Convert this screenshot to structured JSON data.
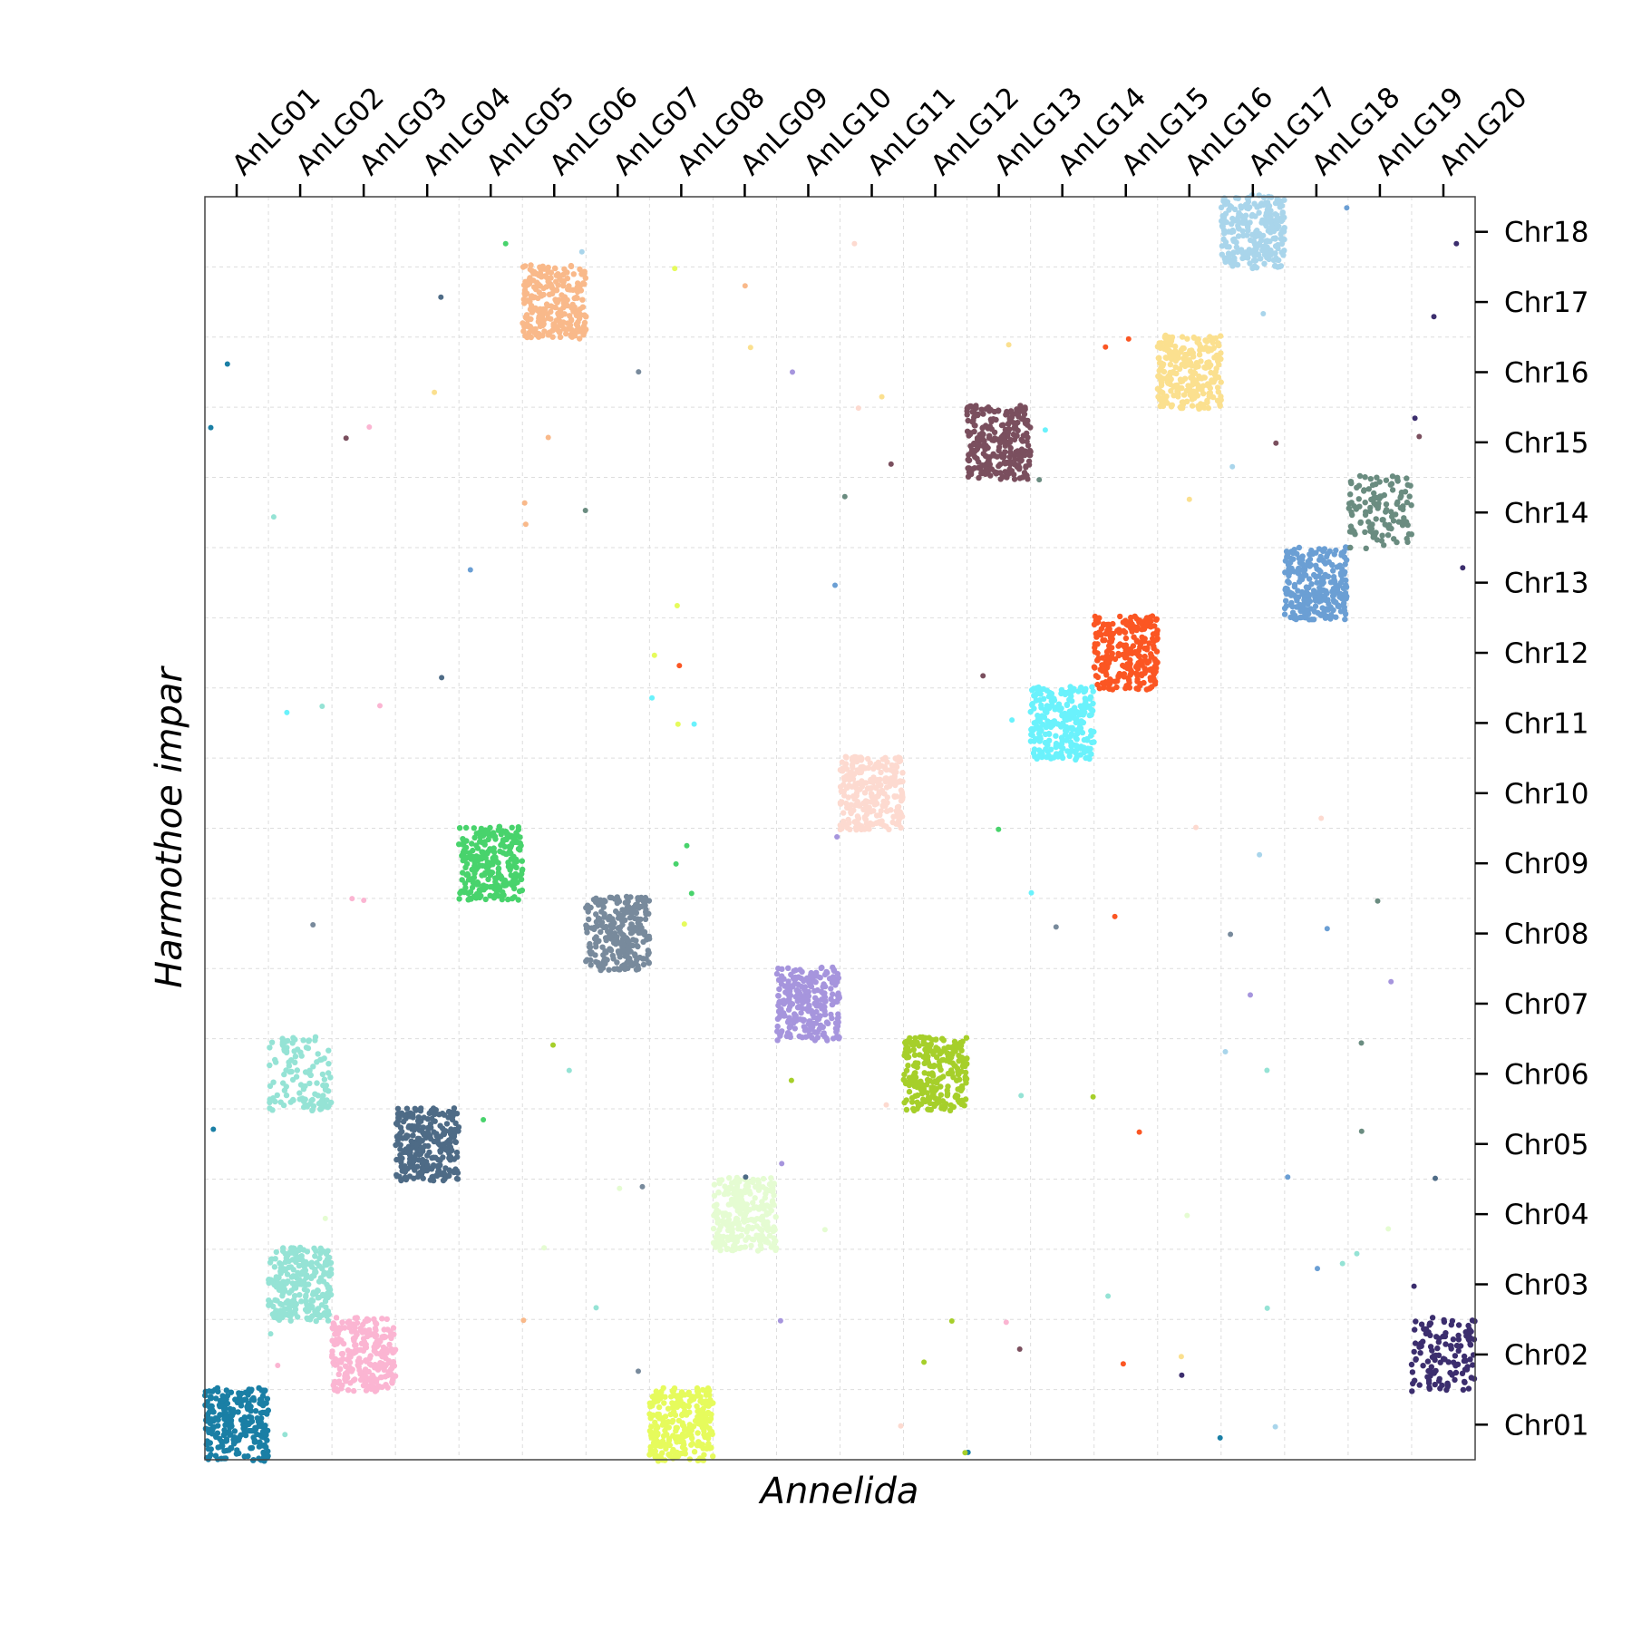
{
  "chart_data": {
    "type": "scatter",
    "title": "",
    "xlabel": "Annelida",
    "ylabel": "Harmothoe impar",
    "x_categories": [
      "AnLG01",
      "AnLG02",
      "AnLG03",
      "AnLG04",
      "AnLG05",
      "AnLG06",
      "AnLG07",
      "AnLG08",
      "AnLG09",
      "AnLG10",
      "AnLG11",
      "AnLG12",
      "AnLG13",
      "AnLG14",
      "AnLG15",
      "AnLG16",
      "AnLG17",
      "AnLG18",
      "AnLG19",
      "AnLG20"
    ],
    "y_categories": [
      "Chr01",
      "Chr02",
      "Chr03",
      "Chr04",
      "Chr05",
      "Chr06",
      "Chr07",
      "Chr08",
      "Chr09",
      "Chr10",
      "Chr11",
      "Chr12",
      "Chr13",
      "Chr14",
      "Chr15",
      "Chr16",
      "Chr17",
      "Chr18"
    ],
    "x_axis_position": "top",
    "y_axis_position": "right",
    "grid": true,
    "clusters": [
      {
        "x": "AnLG01",
        "y": "Chr01",
        "color": "#1a7fa5",
        "density": "high"
      },
      {
        "x": "AnLG02",
        "y": "Chr03",
        "color": "#95e3d5",
        "density": "high"
      },
      {
        "x": "AnLG02",
        "y": "Chr06",
        "color": "#95e3d5",
        "density": "medium"
      },
      {
        "x": "AnLG03",
        "y": "Chr02",
        "color": "#fbb5d2",
        "density": "high"
      },
      {
        "x": "AnLG04",
        "y": "Chr05",
        "color": "#4e6b86",
        "density": "high"
      },
      {
        "x": "AnLG05",
        "y": "Chr09",
        "color": "#48d36c",
        "density": "high"
      },
      {
        "x": "AnLG06",
        "y": "Chr17",
        "color": "#f9b98a",
        "density": "high"
      },
      {
        "x": "AnLG07",
        "y": "Chr08",
        "color": "#788a9c",
        "density": "high"
      },
      {
        "x": "AnLG08",
        "y": "Chr01",
        "color": "#e6fb5c",
        "density": "high"
      },
      {
        "x": "AnLG09",
        "y": "Chr04",
        "color": "#e5fcd2",
        "density": "high"
      },
      {
        "x": "AnLG10",
        "y": "Chr07",
        "color": "#a695dd",
        "density": "high"
      },
      {
        "x": "AnLG11",
        "y": "Chr10",
        "color": "#fddad0",
        "density": "high"
      },
      {
        "x": "AnLG12",
        "y": "Chr06",
        "color": "#a6cf2a",
        "density": "high"
      },
      {
        "x": "AnLG13",
        "y": "Chr15",
        "color": "#7a4f5e",
        "density": "high"
      },
      {
        "x": "AnLG14",
        "y": "Chr11",
        "color": "#6af2fc",
        "density": "high"
      },
      {
        "x": "AnLG15",
        "y": "Chr12",
        "color": "#fb5623",
        "density": "high"
      },
      {
        "x": "AnLG16",
        "y": "Chr16",
        "color": "#fbe08f",
        "density": "high"
      },
      {
        "x": "AnLG17",
        "y": "Chr18",
        "color": "#a9d5eb",
        "density": "high"
      },
      {
        "x": "AnLG18",
        "y": "Chr13",
        "color": "#6b9fd4",
        "density": "high"
      },
      {
        "x": "AnLG19",
        "y": "Chr14",
        "color": "#6a8c80",
        "density": "medium"
      },
      {
        "x": "AnLG20",
        "y": "Chr02",
        "color": "#3c2e6e",
        "density": "medium"
      }
    ]
  }
}
